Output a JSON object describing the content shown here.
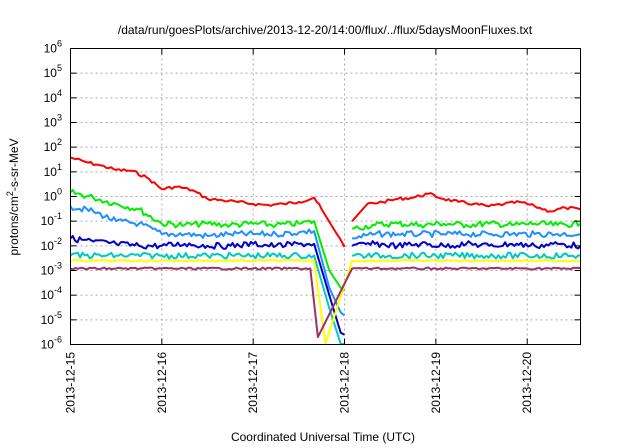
{
  "chart_data": {
    "type": "line",
    "title": "/data/run/goesPlots/archive/2013-12-20/14:00/flux/../flux/5daysMoonFluxes.txt",
    "xlabel": "Coordinated Universal Time (UTC)",
    "ylabel": {
      "prefix": "protons/cm",
      "sup": "2",
      "suffix": "-s-sr-MeV"
    },
    "yscale": "log",
    "ylim_exp": [
      -6,
      6
    ],
    "ytick_exps": [
      -6,
      -5,
      -4,
      -3,
      -2,
      -1,
      0,
      1,
      2,
      3,
      4,
      5,
      6
    ],
    "ytick_base": "10",
    "xlim": [
      "2013-12-15T00:00",
      "2013-12-20T14:00"
    ],
    "xticks": [
      "2013-12-15",
      "2013-12-16",
      "2013-12-17",
      "2013-12-18",
      "2013-12-19",
      "2013-12-20"
    ],
    "grid": true,
    "legend": "none",
    "gap": [
      "2013-12-18T00:00",
      "2013-12-18T02:00"
    ],
    "series": [
      {
        "color": "#ff0000",
        "points": [
          [
            "2013-12-15T00:00",
            38
          ],
          [
            "2013-12-15T04:00",
            25
          ],
          [
            "2013-12-15T08:00",
            18
          ],
          [
            "2013-12-15T12:00",
            12
          ],
          [
            "2013-12-15T16:00",
            11
          ],
          [
            "2013-12-15T20:00",
            6
          ],
          [
            "2013-12-16T00:00",
            2
          ],
          [
            "2013-12-16T04:00",
            2.5
          ],
          [
            "2013-12-16T08:00",
            1.8
          ],
          [
            "2013-12-16T12:00",
            0.8
          ],
          [
            "2013-12-16T16:00",
            0.7
          ],
          [
            "2013-12-16T20:00",
            0.6
          ],
          [
            "2013-12-17T00:00",
            0.5
          ],
          [
            "2013-12-17T04:00",
            0.45
          ],
          [
            "2013-12-17T08:00",
            0.5
          ],
          [
            "2013-12-17T12:00",
            0.6
          ],
          [
            "2013-12-17T16:00",
            0.9
          ],
          [
            "2013-12-17T18:00",
            0.3
          ],
          [
            "2013-12-17T22:00",
            0.03
          ],
          [
            "2013-12-18T00:00",
            0.009
          ],
          [
            "2013-12-18T02:00",
            0.1
          ],
          [
            "2013-12-18T06:00",
            0.5
          ],
          [
            "2013-12-18T10:00",
            0.6
          ],
          [
            "2013-12-18T14:00",
            0.8
          ],
          [
            "2013-12-18T18:00",
            0.9
          ],
          [
            "2013-12-18T22:00",
            1.3
          ],
          [
            "2013-12-19T02:00",
            0.8
          ],
          [
            "2013-12-19T06:00",
            0.6
          ],
          [
            "2013-12-19T10:00",
            0.5
          ],
          [
            "2013-12-19T14:00",
            0.4
          ],
          [
            "2013-12-19T18:00",
            0.5
          ],
          [
            "2013-12-19T22:00",
            0.6
          ],
          [
            "2013-12-20T02:00",
            0.4
          ],
          [
            "2013-12-20T06:00",
            0.25
          ],
          [
            "2013-12-20T10:00",
            0.35
          ],
          [
            "2013-12-20T14:00",
            0.3
          ]
        ]
      },
      {
        "color": "#00ee00",
        "points": [
          [
            "2013-12-15T00:00",
            1.5
          ],
          [
            "2013-12-15T06:00",
            0.9
          ],
          [
            "2013-12-15T12:00",
            0.5
          ],
          [
            "2013-12-15T18:00",
            0.3
          ],
          [
            "2013-12-16T00:00",
            0.08
          ],
          [
            "2013-12-16T06:00",
            0.07
          ],
          [
            "2013-12-16T12:00",
            0.08
          ],
          [
            "2013-12-16T18:00",
            0.07
          ],
          [
            "2013-12-17T00:00",
            0.08
          ],
          [
            "2013-12-17T06:00",
            0.07
          ],
          [
            "2013-12-17T12:00",
            0.08
          ],
          [
            "2013-12-17T16:00",
            0.1
          ],
          [
            "2013-12-17T20:00",
            0.001
          ],
          [
            "2013-12-17T23:00",
            0.0002
          ],
          [
            "2013-12-18T00:00",
            0.00015
          ],
          [
            "2013-12-18T02:00",
            0.05
          ],
          [
            "2013-12-18T08:00",
            0.07
          ],
          [
            "2013-12-18T14:00",
            0.08
          ],
          [
            "2013-12-18T20:00",
            0.07
          ],
          [
            "2013-12-19T02:00",
            0.08
          ],
          [
            "2013-12-19T08:00",
            0.07
          ],
          [
            "2013-12-19T14:00",
            0.08
          ],
          [
            "2013-12-19T20:00",
            0.07
          ],
          [
            "2013-12-20T02:00",
            0.08
          ],
          [
            "2013-12-20T08:00",
            0.07
          ],
          [
            "2013-12-20T14:00",
            0.08
          ]
        ]
      },
      {
        "color": "#1e90ff",
        "points": [
          [
            "2013-12-15T00:00",
            0.4
          ],
          [
            "2013-12-15T06:00",
            0.25
          ],
          [
            "2013-12-15T12:00",
            0.1
          ],
          [
            "2013-12-15T18:00",
            0.08
          ],
          [
            "2013-12-16T00:00",
            0.03
          ],
          [
            "2013-12-16T06:00",
            0.03
          ],
          [
            "2013-12-16T12:00",
            0.025
          ],
          [
            "2013-12-16T18:00",
            0.03
          ],
          [
            "2013-12-17T00:00",
            0.03
          ],
          [
            "2013-12-17T06:00",
            0.03
          ],
          [
            "2013-12-17T12:00",
            0.035
          ],
          [
            "2013-12-17T16:00",
            0.04
          ],
          [
            "2013-12-17T20:00",
            0.0002
          ],
          [
            "2013-12-17T23:00",
            2e-05
          ],
          [
            "2013-12-18T00:00",
            1.5e-05
          ],
          [
            "2013-12-18T02:00",
            0.02
          ],
          [
            "2013-12-18T08:00",
            0.03
          ],
          [
            "2013-12-18T14:00",
            0.03
          ],
          [
            "2013-12-18T20:00",
            0.03
          ],
          [
            "2013-12-19T02:00",
            0.03
          ],
          [
            "2013-12-19T08:00",
            0.03
          ],
          [
            "2013-12-19T14:00",
            0.03
          ],
          [
            "2013-12-19T20:00",
            0.03
          ],
          [
            "2013-12-20T02:00",
            0.03
          ],
          [
            "2013-12-20T08:00",
            0.03
          ],
          [
            "2013-12-20T14:00",
            0.03
          ]
        ]
      },
      {
        "color": "#0000cc",
        "points": [
          [
            "2013-12-15T00:00",
            0.02
          ],
          [
            "2013-12-15T06:00",
            0.015
          ],
          [
            "2013-12-15T12:00",
            0.012
          ],
          [
            "2013-12-15T18:00",
            0.01
          ],
          [
            "2013-12-16T00:00",
            0.01
          ],
          [
            "2013-12-16T06:00",
            0.012
          ],
          [
            "2013-12-16T12:00",
            0.01
          ],
          [
            "2013-12-16T18:00",
            0.01
          ],
          [
            "2013-12-17T00:00",
            0.012
          ],
          [
            "2013-12-17T06:00",
            0.01
          ],
          [
            "2013-12-17T12:00",
            0.012
          ],
          [
            "2013-12-17T16:00",
            0.012
          ],
          [
            "2013-12-17T20:00",
            0.0001
          ],
          [
            "2013-12-17T23:00",
            3e-06
          ],
          [
            "2013-12-18T00:00",
            2.5e-06
          ],
          [
            "2013-12-18T02:00",
            0.01
          ],
          [
            "2013-12-18T08:00",
            0.012
          ],
          [
            "2013-12-18T14:00",
            0.01
          ],
          [
            "2013-12-18T20:00",
            0.012
          ],
          [
            "2013-12-19T02:00",
            0.01
          ],
          [
            "2013-12-19T08:00",
            0.012
          ],
          [
            "2013-12-19T14:00",
            0.01
          ],
          [
            "2013-12-19T20:00",
            0.012
          ],
          [
            "2013-12-20T02:00",
            0.01
          ],
          [
            "2013-12-20T08:00",
            0.012
          ],
          [
            "2013-12-20T14:00",
            0.01
          ]
        ]
      },
      {
        "color": "#00c8c8",
        "points": [
          [
            "2013-12-15T00:00",
            0.004
          ],
          [
            "2013-12-15T12:00",
            0.004
          ],
          [
            "2013-12-16T00:00",
            0.004
          ],
          [
            "2013-12-16T12:00",
            0.004
          ],
          [
            "2013-12-17T00:00",
            0.004
          ],
          [
            "2013-12-17T12:00",
            0.004
          ],
          [
            "2013-12-17T16:00",
            0.004
          ],
          [
            "2013-12-17T20:00",
            3e-05
          ],
          [
            "2013-12-17T23:00",
            1e-06
          ],
          [
            "2013-12-18T00:00",
            1e-06
          ],
          [
            "2013-12-18T02:00",
            0.004
          ],
          [
            "2013-12-18T12:00",
            0.004
          ],
          [
            "2013-12-19T00:00",
            0.004
          ],
          [
            "2013-12-19T12:00",
            0.004
          ],
          [
            "2013-12-20T00:00",
            0.004
          ],
          [
            "2013-12-20T14:00",
            0.004
          ]
        ]
      },
      {
        "color": "#ffff00",
        "points": [
          [
            "2013-12-15T00:00",
            0.0025
          ],
          [
            "2013-12-15T12:00",
            0.0025
          ],
          [
            "2013-12-16T00:00",
            0.0025
          ],
          [
            "2013-12-16T12:00",
            0.0025
          ],
          [
            "2013-12-17T00:00",
            0.0025
          ],
          [
            "2013-12-17T12:00",
            0.0025
          ],
          [
            "2013-12-17T16:00",
            0.0025
          ],
          [
            "2013-12-17T19:00",
            1e-06
          ],
          [
            "2013-12-18T02:00",
            0.0025
          ],
          [
            "2013-12-18T12:00",
            0.0025
          ],
          [
            "2013-12-19T00:00",
            0.0025
          ],
          [
            "2013-12-19T12:00",
            0.0025
          ],
          [
            "2013-12-20T00:00",
            0.0025
          ],
          [
            "2013-12-20T14:00",
            0.0025
          ]
        ]
      },
      {
        "color": "#993366",
        "points": [
          [
            "2013-12-15T00:00",
            0.0012
          ],
          [
            "2013-12-15T12:00",
            0.0012
          ],
          [
            "2013-12-16T00:00",
            0.0012
          ],
          [
            "2013-12-16T12:00",
            0.0012
          ],
          [
            "2013-12-17T00:00",
            0.0012
          ],
          [
            "2013-12-17T12:00",
            0.0012
          ],
          [
            "2013-12-17T15:00",
            0.0012
          ],
          [
            "2013-12-17T17:00",
            2e-06
          ],
          [
            "2013-12-18T02:00",
            0.0012
          ],
          [
            "2013-12-18T12:00",
            0.0012
          ],
          [
            "2013-12-19T00:00",
            0.0012
          ],
          [
            "2013-12-19T12:00",
            0.0012
          ],
          [
            "2013-12-20T00:00",
            0.0012
          ],
          [
            "2013-12-20T14:00",
            0.0012
          ]
        ]
      }
    ]
  }
}
